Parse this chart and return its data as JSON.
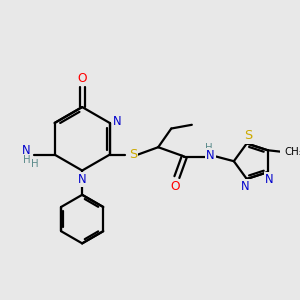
{
  "bg_color": "#e8e8e8",
  "atom_colors": {
    "C": "#000000",
    "N": "#0000cc",
    "O": "#ff0000",
    "S": "#ccaa00",
    "H": "#5a8a8a"
  },
  "bond_color": "#000000",
  "figsize": [
    3.0,
    3.0
  ],
  "dpi": 100
}
